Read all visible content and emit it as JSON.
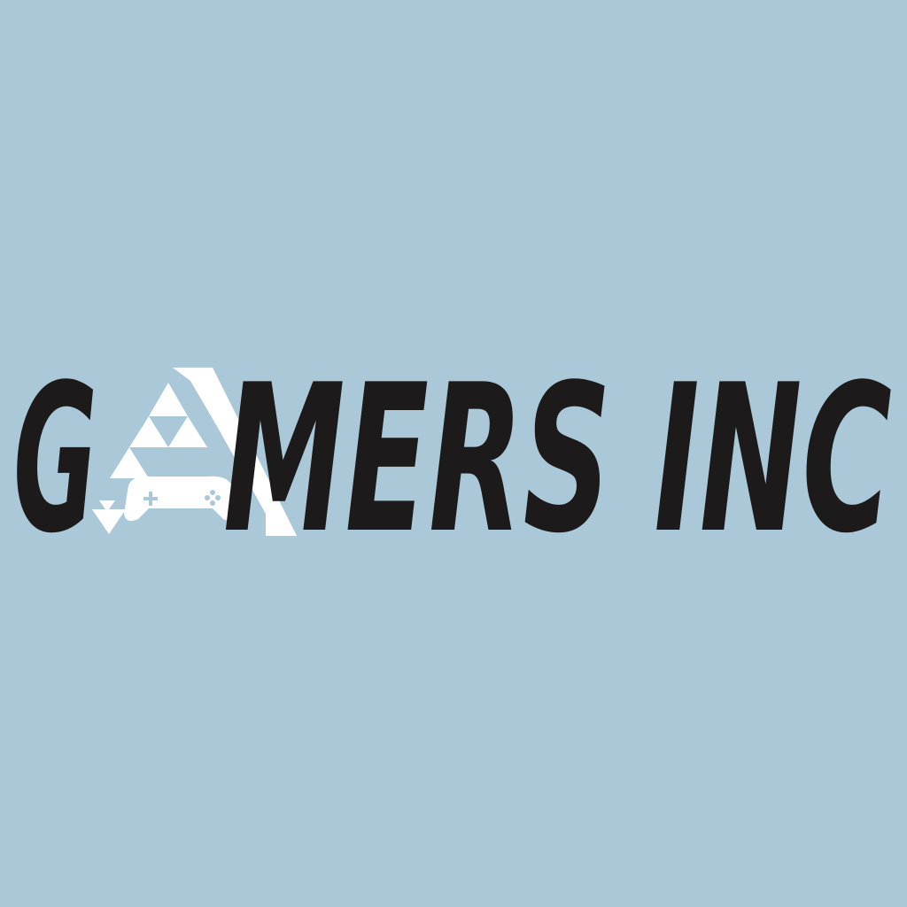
{
  "logo": {
    "lead": "G",
    "tail": "MERS INC"
  }
}
